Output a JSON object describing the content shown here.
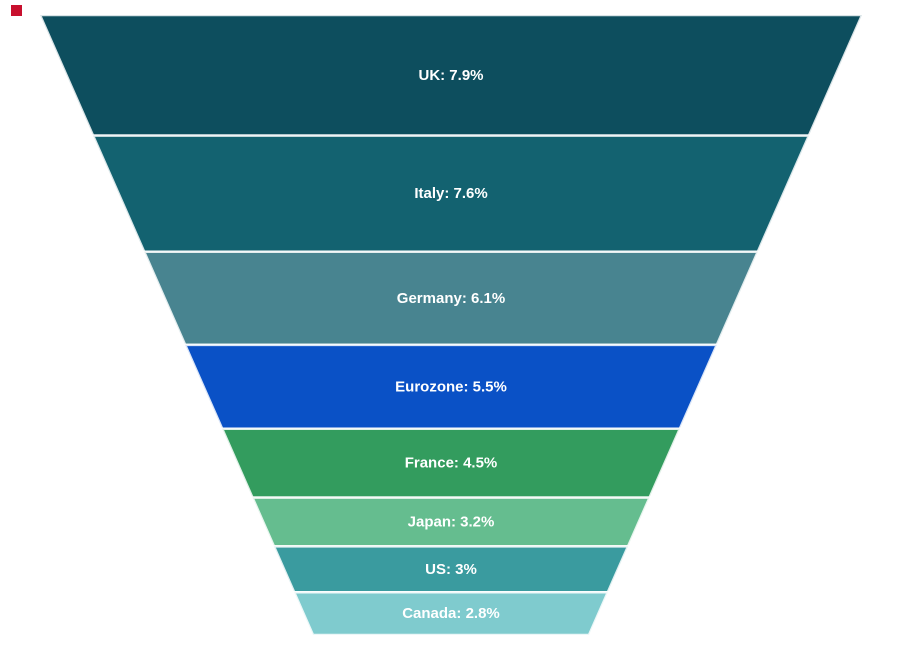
{
  "marker": {
    "color": "#c8102e"
  },
  "chart_data": {
    "type": "funnel",
    "title": "",
    "categories": [
      "UK",
      "Italy",
      "Germany",
      "Eurozone",
      "France",
      "Japan",
      "US",
      "Canada"
    ],
    "values": [
      7.9,
      7.6,
      6.1,
      5.5,
      4.5,
      3.2,
      3,
      2.8
    ],
    "value_labels": [
      "7.9%",
      "7.6%",
      "6.1%",
      "5.5%",
      "4.5%",
      "3.2%",
      "3%",
      "2.8%"
    ],
    "segment_labels": [
      "UK: 7.9%",
      "Italy: 7.6%",
      "Germany: 6.1%",
      "Eurozone: 5.5%",
      "France: 4.5%",
      "Japan: 3.2%",
      "US: 3%",
      "Canada: 2.8%"
    ],
    "colors": [
      "#0d4e5e",
      "#136270",
      "#488490",
      "#0a51c6",
      "#339c5e",
      "#65bd8f",
      "#3a9b9f",
      "#7fcbce"
    ],
    "label_color": "#ffffff",
    "separator_color": "#ffffff",
    "background": "#ffffff",
    "layout": {
      "order": "descending",
      "heights_proportional_to_values": true,
      "shape": "tapered-trapezoid",
      "legend": "none",
      "grid": "off",
      "axes": "none"
    }
  }
}
